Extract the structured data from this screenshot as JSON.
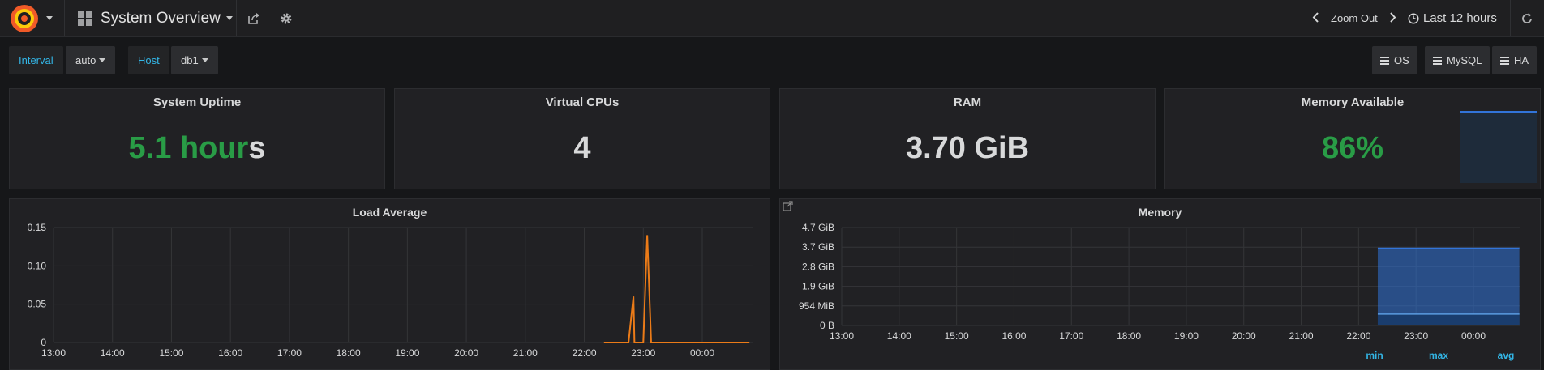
{
  "navbar": {
    "dashboard_title": "System Overview",
    "zoom_out_label": "Zoom Out",
    "time_range_label": "Last 12 hours"
  },
  "variables": [
    {
      "label": "Interval",
      "value": "auto"
    },
    {
      "label": "Host",
      "value": "db1"
    }
  ],
  "links": [
    {
      "label": "OS"
    },
    {
      "label": "MySQL"
    },
    {
      "label": "HA"
    }
  ],
  "stats": {
    "uptime": {
      "title": "System Uptime",
      "value_green": "5.1 hour",
      "value_rest": "s"
    },
    "vcpus": {
      "title": "Virtual CPUs",
      "value": "4"
    },
    "ram": {
      "title": "RAM",
      "value": "3.70 GiB"
    },
    "mem_available": {
      "title": "Memory Available",
      "value": "86%"
    }
  },
  "colors": {
    "accent_blue": "#33b5e5",
    "ok_green": "#299c46",
    "load_line": "#eb7b18",
    "memory_fill": "#3274d9"
  },
  "legend": {
    "min": "min",
    "max": "max",
    "avg": "avg"
  },
  "chart_data": [
    {
      "type": "line",
      "title": "Load Average",
      "x_ticks": [
        "13:00",
        "14:00",
        "15:00",
        "16:00",
        "17:00",
        "18:00",
        "19:00",
        "20:00",
        "21:00",
        "22:00",
        "23:00",
        "00:00"
      ],
      "y_ticks": [
        "0",
        "0.05",
        "0.10",
        "0.15"
      ],
      "ylim": [
        0,
        0.15
      ],
      "grid": true,
      "series": [
        {
          "x": [
            "22:20",
            "22:45",
            "22:50",
            "22:51",
            "22:55",
            "23:00",
            "23:04",
            "23:08",
            "23:15",
            "23:30",
            "00:00",
            "00:48"
          ],
          "y": [
            0,
            0,
            0.06,
            0,
            0,
            0,
            0.14,
            0,
            0,
            0,
            0,
            0
          ]
        }
      ]
    },
    {
      "type": "area",
      "title": "Memory",
      "x_ticks": [
        "13:00",
        "14:00",
        "15:00",
        "16:00",
        "17:00",
        "18:00",
        "19:00",
        "20:00",
        "21:00",
        "22:00",
        "23:00",
        "00:00"
      ],
      "y_ticks": [
        "0 B",
        "954 MiB",
        "1.9 GiB",
        "2.8 GiB",
        "3.7 GiB",
        "4.7 GiB"
      ],
      "ylim": [
        0,
        4.7
      ],
      "grid": true,
      "series": [
        {
          "x": [
            "22:20",
            "00:48"
          ],
          "y": [
            3.7,
            3.7
          ]
        },
        {
          "x": [
            "22:20",
            "00:48"
          ],
          "y": [
            0.55,
            0.55
          ]
        }
      ]
    }
  ]
}
